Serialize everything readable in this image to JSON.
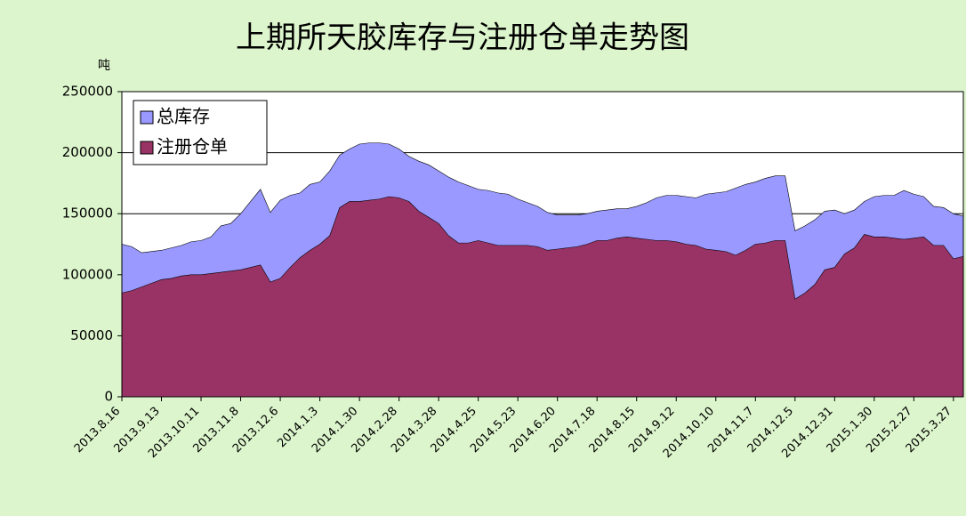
{
  "chart_data": {
    "type": "area",
    "title": "上期所天胶库存与注册仓单走势图",
    "y_label": "吨",
    "categories": [
      "2013.8.16",
      null,
      null,
      null,
      "2013.9.13",
      null,
      null,
      null,
      "2013.10.11",
      null,
      null,
      null,
      "2013.11.8",
      null,
      null,
      null,
      "2013.12.6",
      null,
      null,
      null,
      "2014.1.3",
      null,
      null,
      null,
      "2014.1.30",
      null,
      null,
      null,
      "2014.2.28",
      null,
      null,
      null,
      "2014.3.28",
      null,
      null,
      null,
      "2014.4.25",
      null,
      null,
      null,
      "2014.5.23",
      null,
      null,
      null,
      "2014.6.20",
      null,
      null,
      null,
      "2014.7.18",
      null,
      null,
      null,
      "2014.8.15",
      null,
      null,
      null,
      "2014.9.12",
      null,
      null,
      null,
      "2014.10.10",
      null,
      null,
      null,
      "2014.11.7",
      null,
      null,
      null,
      "2014.12.5",
      null,
      null,
      null,
      "2014.12.31",
      null,
      null,
      null,
      "2015.1.30",
      null,
      null,
      null,
      "2015.2.27",
      null,
      null,
      null,
      "2015.3.27",
      null
    ],
    "series": [
      {
        "name": "总库存",
        "color": "#9999ff",
        "values": [
          125000,
          123000,
          118000,
          119000,
          120000,
          122000,
          124000,
          127000,
          128000,
          131000,
          140000,
          142000,
          150000,
          160000,
          170000,
          151000,
          161000,
          165000,
          167000,
          174000,
          176000,
          185000,
          198000,
          203000,
          207000,
          208000,
          208000,
          207000,
          203000,
          197000,
          193000,
          190000,
          185000,
          180000,
          176000,
          173000,
          170000,
          169000,
          167000,
          166000,
          162000,
          159000,
          156000,
          151000,
          149000,
          149000,
          149000,
          150000,
          152000,
          153000,
          154000,
          154000,
          156000,
          159000,
          163000,
          165000,
          165000,
          164000,
          163000,
          166000,
          167000,
          168000,
          171000,
          174000,
          176000,
          179000,
          181000,
          181000,
          136000,
          140000,
          145000,
          152000,
          153000,
          150000,
          153000,
          160000,
          164000,
          165000,
          165000,
          169000,
          166000,
          164000,
          156000,
          155000,
          150000,
          148000
        ]
      },
      {
        "name": "注册仓单",
        "color": "#993366",
        "values": [
          85000,
          87000,
          90000,
          93000,
          96000,
          97000,
          99000,
          100000,
          100000,
          101000,
          102000,
          103000,
          104000,
          106000,
          108000,
          94000,
          97000,
          106000,
          114000,
          120000,
          125000,
          132000,
          155000,
          160000,
          160000,
          161000,
          162000,
          164000,
          163000,
          160000,
          152000,
          147000,
          142000,
          132000,
          126000,
          126000,
          128000,
          126000,
          124000,
          124000,
          124000,
          124000,
          123000,
          120000,
          121000,
          122000,
          123000,
          125000,
          128000,
          128000,
          130000,
          131000,
          130000,
          129000,
          128000,
          128000,
          127000,
          125000,
          124000,
          121000,
          120000,
          119000,
          116000,
          120000,
          125000,
          126000,
          128000,
          128000,
          80000,
          85000,
          92000,
          104000,
          106000,
          117000,
          122000,
          133000,
          131000,
          131000,
          130000,
          129000,
          130000,
          131000,
          124000,
          124000,
          113000,
          115000
        ]
      }
    ],
    "ylim": [
      0,
      250000
    ],
    "yticks": [
      0,
      50000,
      100000,
      150000,
      200000,
      250000
    ],
    "grid": true,
    "legend": "upper left"
  }
}
